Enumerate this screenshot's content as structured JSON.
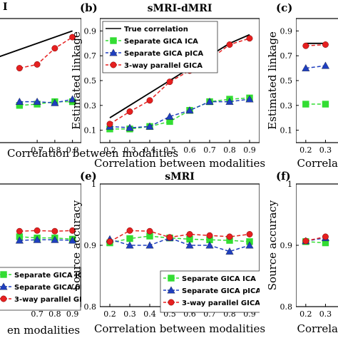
{
  "chart_data": [
    {
      "id": "top-left",
      "panel_label": "",
      "title": "I",
      "type": "line",
      "xlabel": "Correlation between modalities",
      "ylabel": "",
      "x": [
        0.7,
        0.8,
        0.9
      ],
      "xlim": [
        0.15,
        0.95
      ],
      "ylim": [
        0,
        1
      ],
      "xticks": [
        "0.7",
        "0.8",
        "0.9"
      ],
      "yticks": [],
      "series": [
        {
          "name": "True correlation",
          "color": "#000000",
          "marker": "none",
          "dash": "solid",
          "points": [
            [
              0.3,
              0.6
            ],
            [
              0.9,
              0.9
            ]
          ]
        },
        {
          "name": "Separate GICA ICA",
          "color": "#33dd33",
          "marker": "square",
          "dash": "dashed",
          "points": [
            [
              0.6,
              0.3
            ],
            [
              0.7,
              0.31
            ],
            [
              0.8,
              0.33
            ],
            [
              0.9,
              0.33
            ]
          ]
        },
        {
          "name": "Separate GICA pICA",
          "color": "#1f3fbf",
          "marker": "triangle",
          "dash": "dashed",
          "points": [
            [
              0.6,
              0.33
            ],
            [
              0.7,
              0.33
            ],
            [
              0.8,
              0.32
            ],
            [
              0.9,
              0.35
            ]
          ]
        },
        {
          "name": "3-way parallel GICA",
          "color": "#e62020",
          "marker": "circle",
          "dash": "dashed",
          "points": [
            [
              0.6,
              0.6
            ],
            [
              0.7,
              0.63
            ],
            [
              0.8,
              0.76
            ],
            [
              0.9,
              0.85
            ]
          ]
        }
      ]
    },
    {
      "id": "top-middle",
      "panel_label": "(b)",
      "title": "sMRI-dMRI",
      "type": "line",
      "xlabel": "Correlation between modalities",
      "ylabel": "Estimated linkage",
      "x": [
        0.2,
        0.3,
        0.4,
        0.5,
        0.6,
        0.7,
        0.8,
        0.9
      ],
      "xlim": [
        0.15,
        0.95
      ],
      "ylim": [
        0,
        1
      ],
      "xticks": [
        "0.2",
        "0.3",
        "0.4",
        "0.5",
        "0.6",
        "0.7",
        "0.8",
        "0.9"
      ],
      "yticks": [
        "0.1",
        "0.3",
        "0.5",
        "0.7",
        "0.9"
      ],
      "legend": [
        "True correlation",
        "Separate GICA ICA",
        "Separate GICA pICA",
        "3-way parallel GICA"
      ],
      "series": [
        {
          "name": "True correlation",
          "color": "#000000",
          "marker": "none",
          "dash": "solid",
          "values": [
            0.2,
            0.3,
            0.4,
            0.5,
            0.6,
            0.7,
            0.8,
            0.87
          ]
        },
        {
          "name": "Separate GICA ICA",
          "color": "#33dd33",
          "marker": "square",
          "dash": "dashed",
          "values": [
            0.11,
            0.11,
            0.13,
            0.17,
            0.26,
            0.33,
            0.35,
            0.36
          ]
        },
        {
          "name": "Separate GICA pICA",
          "color": "#1f3fbf",
          "marker": "triangle",
          "dash": "dashed",
          "values": [
            0.13,
            0.12,
            0.13,
            0.21,
            0.26,
            0.33,
            0.33,
            0.35
          ]
        },
        {
          "name": "3-way parallel GICA",
          "color": "#e62020",
          "marker": "circle",
          "dash": "dashed",
          "values": [
            0.15,
            0.25,
            0.34,
            0.49,
            0.58,
            0.67,
            0.79,
            0.84
          ]
        }
      ]
    },
    {
      "id": "top-right",
      "panel_label": "(c)",
      "title": "",
      "type": "line",
      "xlabel": "Correla",
      "ylabel": "Estimated linkage",
      "x": [
        0.2,
        0.3
      ],
      "xlim": [
        0.15,
        0.95
      ],
      "ylim": [
        0,
        1
      ],
      "xticks": [
        "0.2",
        "0.3"
      ],
      "yticks": [
        "0.1",
        "0.3",
        "0.5",
        "0.7",
        "0.9"
      ],
      "series": [
        {
          "name": "True correlation",
          "color": "#000000",
          "marker": "none",
          "dash": "solid",
          "values": [
            0.8,
            0.8
          ]
        },
        {
          "name": "Separate GICA ICA",
          "color": "#33dd33",
          "marker": "square",
          "dash": "dashed",
          "values": [
            0.31,
            0.31
          ]
        },
        {
          "name": "Separate GICA pICA",
          "color": "#1f3fbf",
          "marker": "triangle",
          "dash": "dashed",
          "values": [
            0.6,
            0.62
          ]
        },
        {
          "name": "3-way parallel GICA",
          "color": "#e62020",
          "marker": "circle",
          "dash": "dashed",
          "values": [
            0.78,
            0.79
          ]
        }
      ]
    },
    {
      "id": "bottom-left",
      "panel_label": "",
      "title": "",
      "type": "line",
      "xlabel": "en modalities",
      "ylabel": "",
      "x": [
        0.7,
        0.8,
        0.9
      ],
      "xlim": [
        0.15,
        0.95
      ],
      "ylim": [
        0.8,
        1
      ],
      "xticks": [
        "0.7",
        "0.8",
        "0.9"
      ],
      "yticks": [],
      "legend": [
        "Separate GICA ICA",
        "Separate GICA pICA",
        "3-way parallel GICA"
      ],
      "series": [
        {
          "name": "Separate GICA ICA",
          "color": "#33dd33",
          "marker": "square",
          "dash": "dashed",
          "points": [
            [
              0.6,
              0.914
            ],
            [
              0.7,
              0.912
            ],
            [
              0.8,
              0.912
            ],
            [
              0.9,
              0.91
            ]
          ]
        },
        {
          "name": "Separate GICA pICA",
          "color": "#1f3fbf",
          "marker": "triangle",
          "dash": "dashed",
          "points": [
            [
              0.6,
              0.908
            ],
            [
              0.7,
              0.909
            ],
            [
              0.8,
              0.909
            ],
            [
              0.9,
              0.908
            ]
          ]
        },
        {
          "name": "3-way parallel GICA",
          "color": "#e62020",
          "marker": "circle",
          "dash": "dashed",
          "points": [
            [
              0.6,
              0.923
            ],
            [
              0.7,
              0.924
            ],
            [
              0.8,
              0.923
            ],
            [
              0.9,
              0.924
            ]
          ]
        }
      ]
    },
    {
      "id": "bottom-middle",
      "panel_label": "(e)",
      "title": "sMRI",
      "type": "line",
      "xlabel": "Correlation between modalities",
      "ylabel": "Source accuracy",
      "x": [
        0.2,
        0.3,
        0.4,
        0.5,
        0.6,
        0.7,
        0.8,
        0.9
      ],
      "xlim": [
        0.15,
        0.95
      ],
      "ylim": [
        0.8,
        1
      ],
      "xticks": [
        "0.2",
        "0.3",
        "0.4",
        "0.5",
        "0.6",
        "0.7",
        "0.8",
        "0.9"
      ],
      "yticks": [
        "0.8",
        "0.9",
        "1"
      ],
      "legend": [
        "Separate GICA ICA",
        "Separate GICA pICA",
        "3-way parallel GICA"
      ],
      "series": [
        {
          "name": "Separate GICA ICA",
          "color": "#33dd33",
          "marker": "square",
          "dash": "dashed",
          "values": [
            0.904,
            0.911,
            0.915,
            0.912,
            0.91,
            0.909,
            0.908,
            0.906
          ]
        },
        {
          "name": "Separate GICA pICA",
          "color": "#1f3fbf",
          "marker": "triangle",
          "dash": "dashed",
          "values": [
            0.91,
            0.9,
            0.9,
            0.912,
            0.9,
            0.9,
            0.89,
            0.9
          ]
        },
        {
          "name": "3-way parallel GICA",
          "color": "#e62020",
          "marker": "circle",
          "dash": "dashed",
          "values": [
            0.906,
            0.924,
            0.923,
            0.913,
            0.918,
            0.916,
            0.914,
            0.918
          ]
        }
      ]
    },
    {
      "id": "bottom-right",
      "panel_label": "(f)",
      "title": "",
      "type": "line",
      "xlabel": "Correla",
      "ylabel": "Source accuracy",
      "x": [
        0.2,
        0.3
      ],
      "xlim": [
        0.15,
        0.95
      ],
      "ylim": [
        0.8,
        1
      ],
      "xticks": [
        "0.2",
        "0.3"
      ],
      "yticks": [
        "0.8",
        "0.9",
        "1"
      ],
      "series": [
        {
          "name": "Separate GICA ICA",
          "color": "#33dd33",
          "marker": "square",
          "dash": "dashed",
          "values": [
            0.906,
            0.904
          ]
        },
        {
          "name": "Separate GICA pICA",
          "color": "#1f3fbf",
          "marker": "triangle",
          "dash": "dashed",
          "values": [
            0.907,
            0.912
          ]
        },
        {
          "name": "3-way parallel GICA",
          "color": "#e62020",
          "marker": "circle",
          "dash": "dashed",
          "values": [
            0.907,
            0.914
          ]
        }
      ]
    }
  ]
}
